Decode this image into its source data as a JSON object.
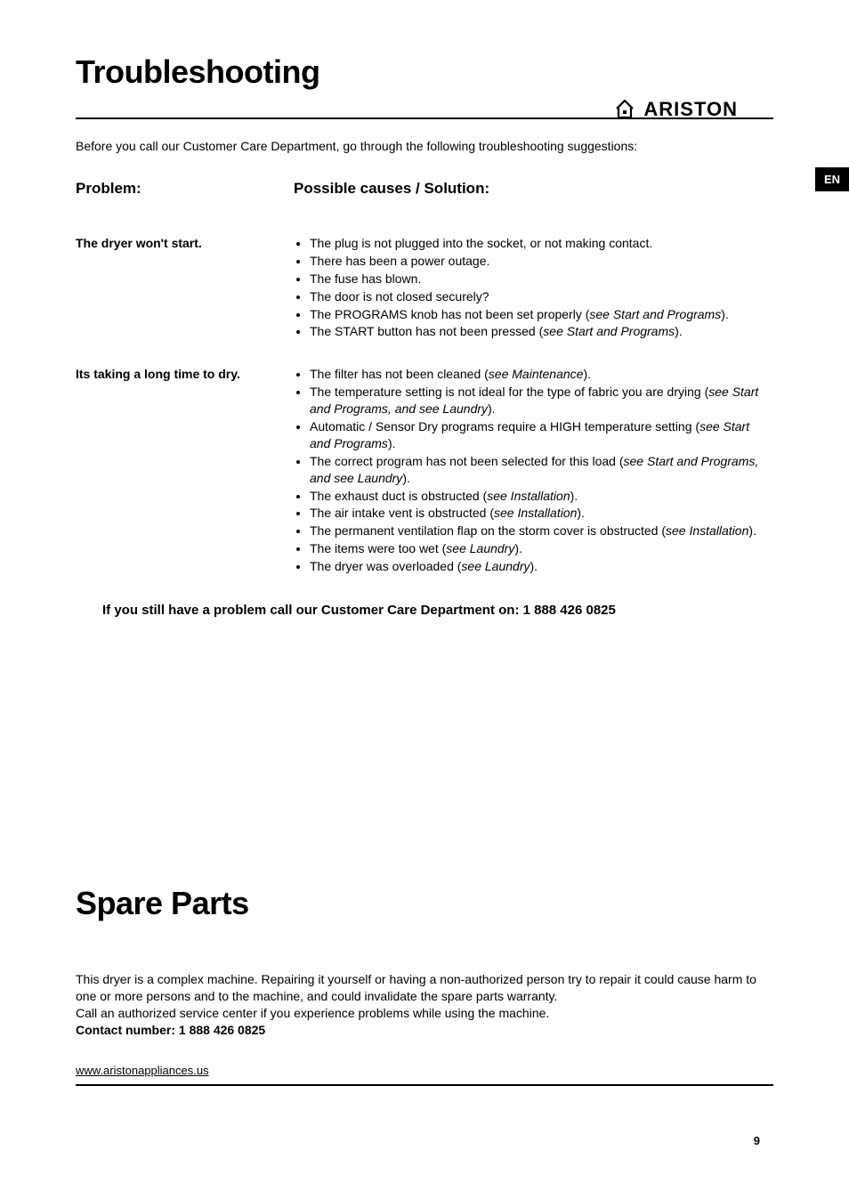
{
  "brand": {
    "name": "ARISTON",
    "icon_stroke": "#000000"
  },
  "lang_badge": "EN",
  "page_number": "9",
  "section1": {
    "title": "Troubleshooting",
    "intro": "Before you call our Customer Care Department, go through the following troubleshooting suggestions:",
    "col_problem_header": "Problem:",
    "col_solution_header": "Possible causes / Solution:",
    "rows": [
      {
        "problem": "The dryer won't start.",
        "items": [
          {
            "text": "The plug is not plugged into the socket, or not making contact."
          },
          {
            "text": "There has been a power outage."
          },
          {
            "text": "The fuse has blown."
          },
          {
            "text": "The door is not closed securely?"
          },
          {
            "text": "The PROGRAMS knob has not been set properly (",
            "ref": "see Start and Programs",
            "tail": ")."
          },
          {
            "text": "The START button has not been pressed (",
            "ref": "see Start and Programs",
            "tail": ")."
          }
        ]
      },
      {
        "problem": "Its taking a long time to dry.",
        "items": [
          {
            "text": "The filter has not been cleaned (",
            "ref": "see Maintenance",
            "tail": ")."
          },
          {
            "text": "The temperature setting is not ideal for the type of fabric you are drying (",
            "ref": "see Start and Programs, and see Laundry",
            "tail": ")."
          },
          {
            "text": "Automatic / Sensor Dry programs require a HIGH temperature setting (",
            "ref": "see Start and Programs",
            "tail": ")."
          },
          {
            "text": "The correct program has not been selected for this load (",
            "ref": "see Start and Programs, and see Laundry",
            "tail": ")."
          },
          {
            "text": "The exhaust duct is obstructed (",
            "ref": "see Installation",
            "tail": ")."
          },
          {
            "text": "The air intake vent is obstructed (",
            "ref": "see Installation",
            "tail": ")."
          },
          {
            "text": "The permanent ventilation flap on the storm cover is obstructed (",
            "ref": "see Installation",
            "tail": ")."
          },
          {
            "text": "The items were too wet (",
            "ref": "see Laundry",
            "tail": ")."
          },
          {
            "text": "The dryer was overloaded (",
            "ref": "see Laundry",
            "tail": ")."
          }
        ]
      }
    ],
    "callout": "If you still have a problem call our Customer Care Department on: 1 888 426 0825"
  },
  "section2": {
    "title": "Spare Parts",
    "body_line1": "This dryer is a complex machine. Repairing it yourself or having a non-authorized person try to repair it could cause harm to one or more persons and to the machine, and could invalidate the spare parts warranty.",
    "body_line2": "Call an authorized service center if you experience problems while using the machine.",
    "contact_label": "Contact number: 1 888 426 0825",
    "website": "www.aristonappliances.us"
  },
  "colors": {
    "text": "#000000",
    "background": "#ffffff",
    "badge_bg": "#000000",
    "badge_fg": "#ffffff",
    "rule": "#000000"
  }
}
